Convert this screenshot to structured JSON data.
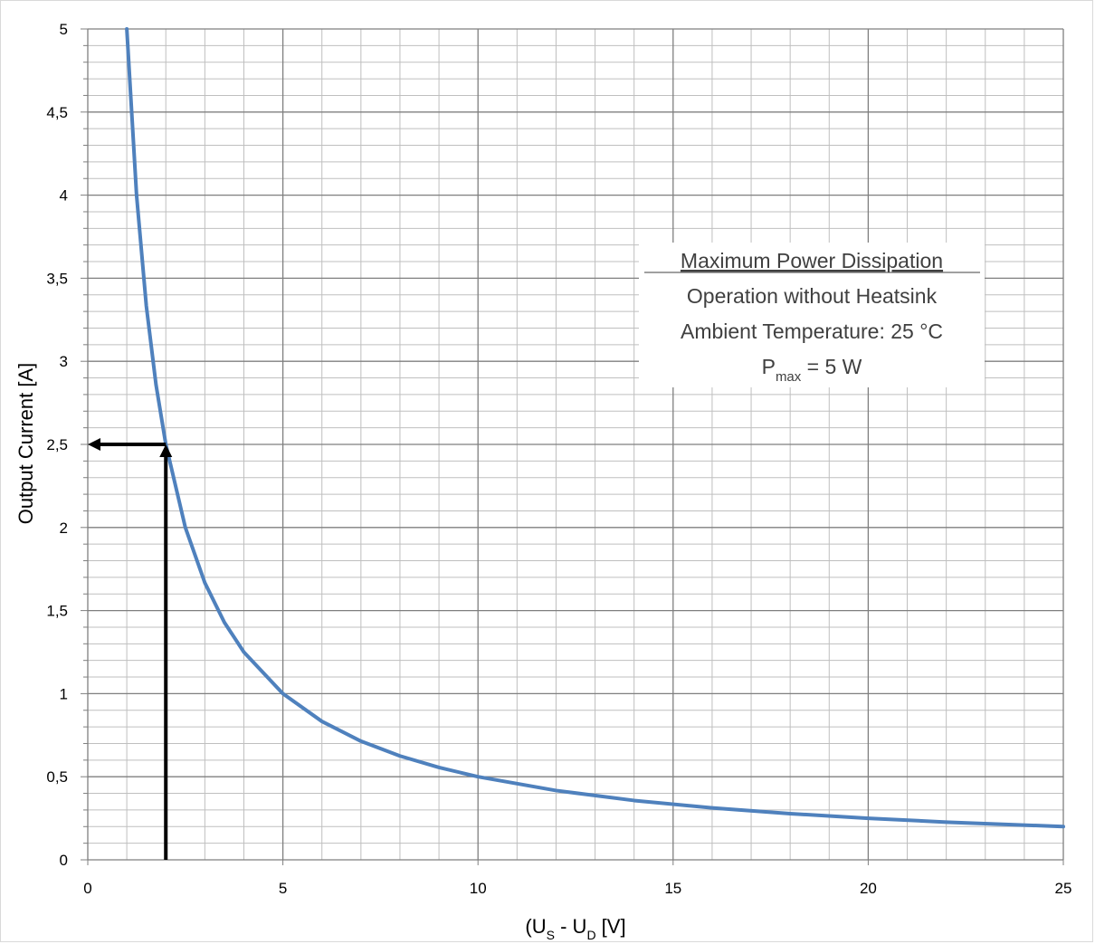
{
  "chart_data": {
    "type": "line",
    "xlabel_parts": [
      "(U",
      "S",
      " - U",
      "D",
      "  [V]"
    ],
    "ylabel": "Output Current  [A]",
    "xlim": [
      0,
      25
    ],
    "ylim": [
      0,
      5
    ],
    "x_ticks": [
      0,
      5,
      10,
      15,
      20,
      25
    ],
    "y_ticks": [
      0,
      0.5,
      1,
      1.5,
      2,
      2.5,
      3,
      3.5,
      4,
      4.5,
      5
    ],
    "x_tick_labels": [
      "0",
      "5",
      "10",
      "15",
      "20",
      "25"
    ],
    "y_tick_labels": [
      "0",
      "0,5",
      "1",
      "1,5",
      "2",
      "2,5",
      "3",
      "3,5",
      "4",
      "4,5",
      "5"
    ],
    "grid": true,
    "series": [
      {
        "color": "#4f81bd",
        "x": [
          1,
          1.25,
          1.5,
          1.75,
          2,
          2.5,
          3,
          3.5,
          4,
          5,
          6,
          7,
          8,
          9,
          10,
          12,
          14,
          16,
          18,
          20,
          22,
          25
        ],
        "y": [
          5,
          4,
          3.333,
          2.857,
          2.5,
          2,
          1.667,
          1.429,
          1.25,
          1,
          0.833,
          0.714,
          0.625,
          0.556,
          0.5,
          0.417,
          0.357,
          0.3125,
          0.278,
          0.25,
          0.227,
          0.2
        ]
      }
    ],
    "marker": {
      "x": 2,
      "y": 2.5,
      "color": "#000000"
    },
    "annotation": {
      "title": "Maximum Power Dissipation",
      "line1": "Operation without Heatsink",
      "line2": "Ambient Temperature: 25 °C",
      "pmax_parts": [
        "P",
        "max",
        " = 5 W"
      ]
    }
  }
}
